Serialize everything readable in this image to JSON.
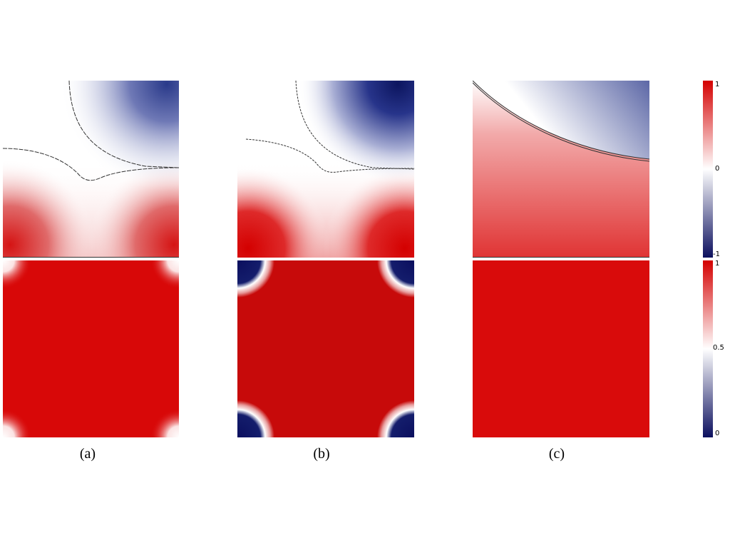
{
  "figure": {
    "captions": [
      "(a)",
      "(b)",
      "(c)"
    ]
  },
  "colorbars": {
    "top": {
      "ticks": [
        "1",
        "0",
        "-1"
      ],
      "range": [
        -1,
        1
      ],
      "colors": [
        "#0b0f5e",
        "#ffffff",
        "#d40000"
      ]
    },
    "bottom": {
      "ticks": [
        "1",
        "0.5",
        "0"
      ],
      "range": [
        0,
        1
      ],
      "colors": [
        "#0b0f5e",
        "#ffffff",
        "#d40000"
      ]
    }
  },
  "colors": {
    "red": "#d40000",
    "blue": "#0b0f5e",
    "white": "#ffffff"
  }
}
